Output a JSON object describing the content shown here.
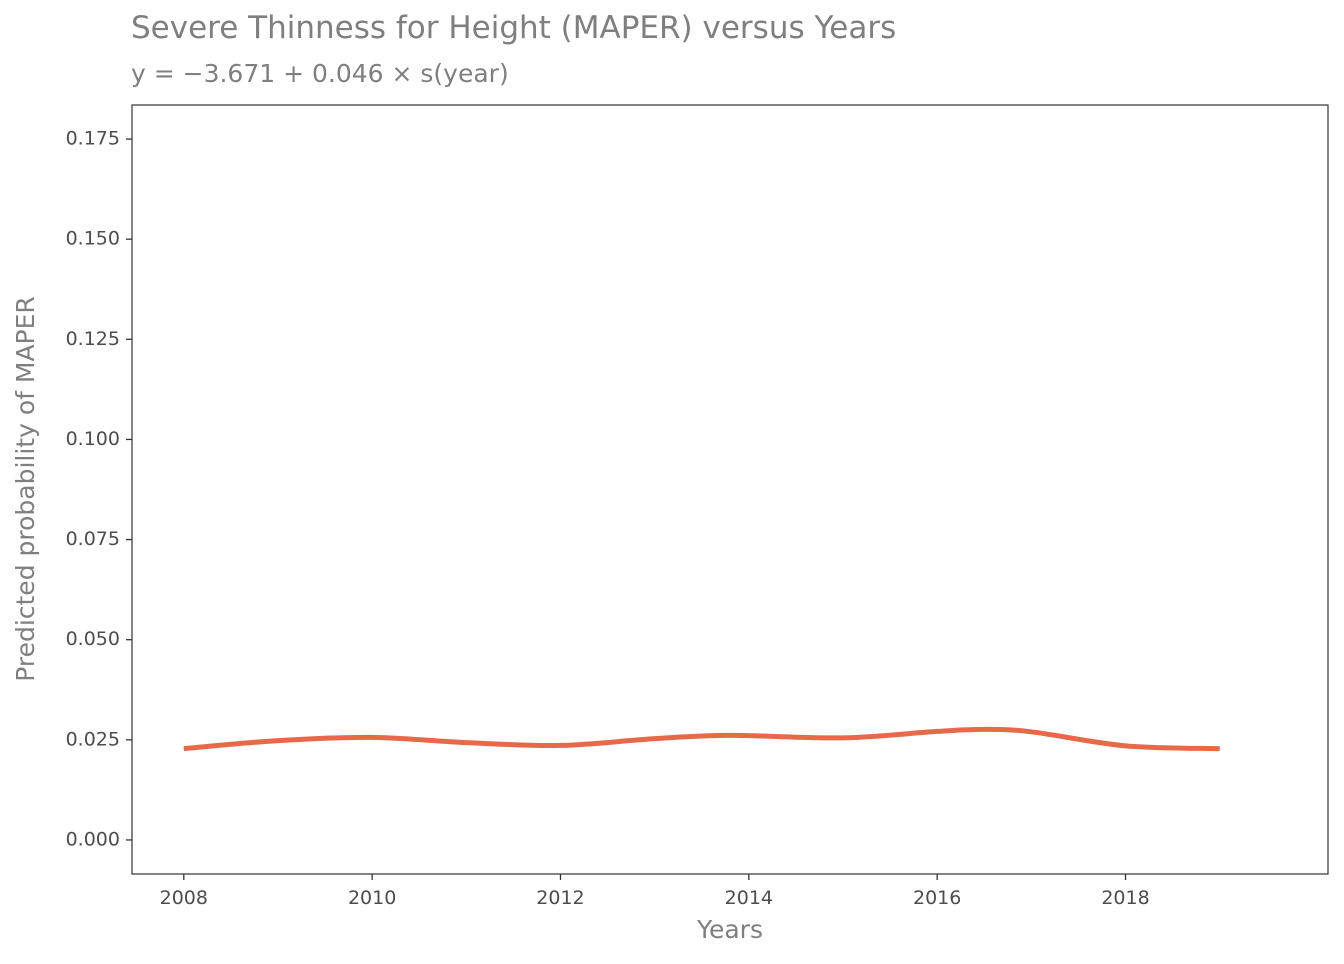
{
  "chart_data": {
    "type": "line",
    "title": "Severe Thinness for Height (MAPER) versus Years",
    "subtitle": "y = −3.671 + 0.046 × s(year)",
    "xlabel": "Years",
    "ylabel": "Predicted probability of MAPER",
    "xlim": [
      2007.45,
      2020.15
    ],
    "ylim": [
      -0.0085,
      0.1835
    ],
    "x_ticks": [
      2008,
      2010,
      2012,
      2014,
      2016,
      2018
    ],
    "x_tick_labels": [
      "2008",
      "2010",
      "2012",
      "2014",
      "2016",
      "2018"
    ],
    "y_ticks": [
      0,
      0.025,
      0.05,
      0.075,
      0.1,
      0.125,
      0.15,
      0.175
    ],
    "y_tick_labels": [
      "0.000",
      "0.025",
      "0.050",
      "0.075",
      "0.100",
      "0.125",
      "0.150",
      "0.175"
    ],
    "grid": false,
    "series": [
      {
        "color": "#E8694A",
        "x": [
          2008,
          2009,
          2010,
          2011,
          2012,
          2013,
          2013.8,
          2015,
          2016,
          2016.5,
          2017,
          2018,
          2019
        ],
        "y": [
          0.0228,
          0.0248,
          0.0256,
          0.0243,
          0.0236,
          0.0253,
          0.0261,
          0.0255,
          0.0271,
          0.0276,
          0.027,
          0.0235,
          0.0228
        ]
      }
    ]
  }
}
